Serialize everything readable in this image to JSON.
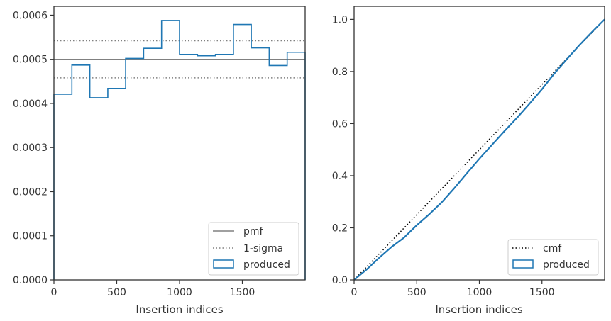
{
  "chart_data": [
    {
      "type": "histogram",
      "xlabel": "Insertion indices",
      "ylabel": "",
      "xlim": [
        0,
        2000
      ],
      "ylim": [
        0,
        0.00062
      ],
      "xticks": [
        0,
        500,
        1000,
        1500
      ],
      "xtick_labels": [
        "0",
        "500",
        "1000",
        "1500"
      ],
      "yticks": [
        0,
        0.0001,
        0.0002,
        0.0003,
        0.0004,
        0.0005,
        0.0006
      ],
      "ytick_labels": [
        "0.0000",
        "0.0001",
        "0.0002",
        "0.0003",
        "0.0004",
        "0.0005",
        "0.0006"
      ],
      "bin_edges": [
        0,
        143,
        286,
        429,
        571,
        714,
        857,
        1000,
        1143,
        1286,
        1429,
        1571,
        1714,
        1857,
        2000
      ],
      "series": [
        {
          "name": "pmf",
          "style": "solid",
          "color": "#808080",
          "y": 0.0005
        },
        {
          "name": "1-sigma",
          "style": "dotted",
          "color": "#808080",
          "y": [
            0.000458,
            0.000542
          ]
        },
        {
          "name": "produced",
          "style": "step",
          "color": "#1f77b4",
          "values": [
            0.000421,
            0.000487,
            0.000413,
            0.000434,
            0.000502,
            0.000525,
            0.000588,
            0.000511,
            0.000508,
            0.000511,
            0.000579,
            0.000526,
            0.000486,
            0.000516
          ]
        }
      ],
      "legend": {
        "position": "lower-right",
        "entries": [
          "pmf",
          "1-sigma",
          "produced"
        ]
      },
      "grid": false
    },
    {
      "type": "line",
      "xlabel": "Insertion indices",
      "ylabel": "",
      "xlim": [
        0,
        2000
      ],
      "ylim": [
        0,
        1.05
      ],
      "xticks": [
        0,
        500,
        1000,
        1500
      ],
      "xtick_labels": [
        "0",
        "500",
        "1000",
        "1500"
      ],
      "yticks": [
        0,
        0.2,
        0.4,
        0.6,
        0.8,
        1.0
      ],
      "ytick_labels": [
        "0.0",
        "0.2",
        "0.4",
        "0.6",
        "0.8",
        "1.0"
      ],
      "series": [
        {
          "name": "cmf",
          "style": "dotted",
          "color": "#000000",
          "x": [
            0,
            2000
          ],
          "y": [
            0,
            1.0
          ]
        },
        {
          "name": "produced",
          "style": "solid",
          "color": "#1f77b4",
          "x": [
            0,
            100,
            200,
            300,
            400,
            500,
            600,
            700,
            800,
            900,
            1000,
            1100,
            1200,
            1300,
            1400,
            1500,
            1600,
            1700,
            1800,
            1900,
            2000
          ],
          "y": [
            0,
            0.04,
            0.085,
            0.127,
            0.163,
            0.21,
            0.252,
            0.298,
            0.352,
            0.409,
            0.465,
            0.518,
            0.571,
            0.622,
            0.676,
            0.732,
            0.793,
            0.848,
            0.902,
            0.952,
            1.0
          ]
        }
      ],
      "legend": {
        "position": "lower-right",
        "entries": [
          "cmf",
          "produced"
        ]
      },
      "grid": false
    }
  ]
}
